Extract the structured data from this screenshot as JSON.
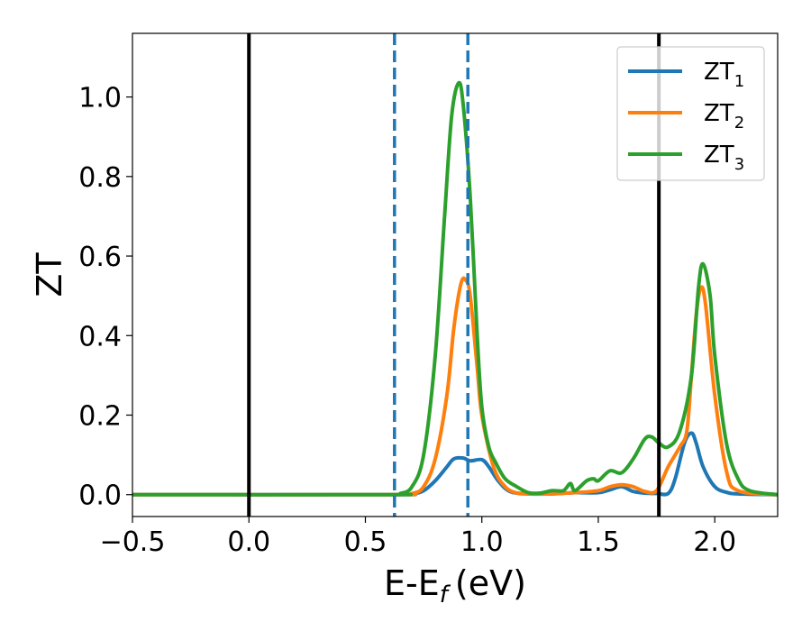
{
  "chart_data": {
    "type": "line",
    "xlabel": "E-E",
    "xlabel_sub": "f",
    "xlabel_unit": "(eV)",
    "ylabel": "ZT",
    "xlim": [
      -0.5,
      2.27
    ],
    "ylim": [
      -0.055,
      1.16
    ],
    "xticks": [
      -0.5,
      0.0,
      0.5,
      1.0,
      1.5,
      2.0
    ],
    "xtick_labels": [
      "−0.5",
      "0.0",
      "0.5",
      "1.0",
      "1.5",
      "2.0"
    ],
    "yticks": [
      0.0,
      0.2,
      0.4,
      0.6,
      0.8,
      1.0
    ],
    "ytick_labels": [
      "0.0",
      "0.2",
      "0.4",
      "0.6",
      "0.8",
      "1.0"
    ],
    "grid": false,
    "legend_position": "top-right",
    "vlines": [
      {
        "x": 0.0,
        "color": "#000000",
        "style": "solid"
      },
      {
        "x": 1.76,
        "color": "#000000",
        "style": "solid"
      },
      {
        "x": 0.625,
        "color": "#1f77b4",
        "style": "dashed"
      },
      {
        "x": 0.94,
        "color": "#1f77b4",
        "style": "dashed"
      }
    ],
    "series": [
      {
        "name": "ZT",
        "sub": "1",
        "color": "#1f77b4",
        "x": [
          -0.5,
          0.6,
          0.7,
          0.75,
          0.8,
          0.85,
          0.88,
          0.92,
          0.95,
          1.0,
          1.03,
          1.07,
          1.12,
          1.2,
          1.3,
          1.4,
          1.5,
          1.55,
          1.6,
          1.65,
          1.7,
          1.75,
          1.8,
          1.83,
          1.87,
          1.9,
          1.92,
          1.95,
          2.0,
          2.05,
          2.1,
          2.27
        ],
        "y": [
          0.0,
          0.0,
          0.002,
          0.01,
          0.035,
          0.07,
          0.09,
          0.092,
          0.085,
          0.088,
          0.07,
          0.035,
          0.008,
          0.002,
          0.002,
          0.005,
          0.005,
          0.012,
          0.02,
          0.008,
          0.004,
          0.003,
          0.003,
          0.04,
          0.13,
          0.155,
          0.13,
          0.07,
          0.02,
          0.006,
          0.002,
          0.0
        ]
      },
      {
        "name": "ZT",
        "sub": "2",
        "color": "#ff7f0e",
        "x": [
          -0.5,
          0.6,
          0.7,
          0.75,
          0.8,
          0.85,
          0.88,
          0.91,
          0.93,
          0.95,
          0.98,
          1.0,
          1.05,
          1.1,
          1.15,
          1.2,
          1.3,
          1.4,
          1.5,
          1.55,
          1.6,
          1.65,
          1.7,
          1.75,
          1.8,
          1.85,
          1.88,
          1.9,
          1.92,
          1.94,
          1.96,
          2.0,
          2.05,
          2.1,
          2.27
        ],
        "y": [
          0.0,
          0.0,
          0.003,
          0.02,
          0.09,
          0.25,
          0.42,
          0.53,
          0.54,
          0.5,
          0.32,
          0.2,
          0.07,
          0.02,
          0.004,
          0.002,
          0.002,
          0.005,
          0.01,
          0.02,
          0.025,
          0.02,
          0.008,
          0.01,
          0.07,
          0.12,
          0.16,
          0.3,
          0.45,
          0.52,
          0.48,
          0.25,
          0.06,
          0.01,
          0.0
        ]
      },
      {
        "name": "ZT",
        "sub": "3",
        "color": "#2ca02c",
        "x": [
          -0.5,
          0.6,
          0.65,
          0.7,
          0.75,
          0.8,
          0.84,
          0.87,
          0.9,
          0.92,
          0.95,
          0.98,
          1.0,
          1.03,
          1.06,
          1.1,
          1.15,
          1.2,
          1.25,
          1.3,
          1.35,
          1.38,
          1.4,
          1.45,
          1.48,
          1.5,
          1.55,
          1.6,
          1.65,
          1.7,
          1.73,
          1.76,
          1.8,
          1.85,
          1.9,
          1.93,
          1.95,
          1.98,
          2.0,
          2.05,
          2.1,
          2.15,
          2.27
        ],
        "y": [
          0.0,
          0.0,
          0.003,
          0.02,
          0.1,
          0.35,
          0.7,
          0.95,
          1.035,
          0.98,
          0.75,
          0.4,
          0.22,
          0.12,
          0.08,
          0.04,
          0.02,
          0.005,
          0.004,
          0.01,
          0.01,
          0.028,
          0.01,
          0.035,
          0.04,
          0.035,
          0.06,
          0.055,
          0.09,
          0.14,
          0.145,
          0.13,
          0.12,
          0.16,
          0.3,
          0.52,
          0.58,
          0.5,
          0.35,
          0.13,
          0.04,
          0.01,
          0.0
        ]
      }
    ]
  }
}
